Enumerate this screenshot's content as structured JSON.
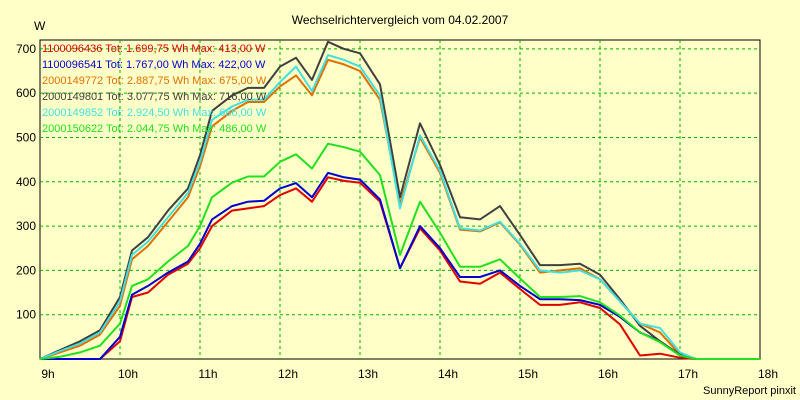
{
  "chart_data": {
    "type": "line",
    "title": "Wechselrichtervergleich vom 04.02.2007",
    "ylabel": "W",
    "xlabel": "",
    "footer": "SunnyReport pinxit",
    "ylim": [
      0,
      720
    ],
    "xlim": [
      9,
      18
    ],
    "grid": true,
    "legend_position": "top-left",
    "yticks": [
      {
        "value": 100,
        "label": "100"
      },
      {
        "value": 200,
        "label": "200"
      },
      {
        "value": 300,
        "label": "300"
      },
      {
        "value": 400,
        "label": "400"
      },
      {
        "value": 500,
        "label": "500"
      },
      {
        "value": 600,
        "label": "600"
      },
      {
        "value": 700,
        "label": "700"
      }
    ],
    "xticks": [
      {
        "value": 9,
        "label": "9h"
      },
      {
        "value": 10,
        "label": "10h"
      },
      {
        "value": 11,
        "label": "11h"
      },
      {
        "value": 12,
        "label": "12h"
      },
      {
        "value": 13,
        "label": "13h"
      },
      {
        "value": 14,
        "label": "14h"
      },
      {
        "value": 15,
        "label": "15h"
      },
      {
        "value": 16,
        "label": "16h"
      },
      {
        "value": 17,
        "label": "17h"
      },
      {
        "value": 18,
        "label": "18h"
      }
    ],
    "x": [
      8.9,
      9.25,
      9.5,
      9.75,
      10.0,
      10.15,
      10.35,
      10.6,
      10.85,
      11.0,
      11.15,
      11.4,
      11.6,
      11.8,
      12.0,
      12.2,
      12.4,
      12.6,
      12.8,
      13.0,
      13.25,
      13.5,
      13.75,
      14.0,
      14.25,
      14.5,
      14.75,
      15.0,
      15.25,
      15.5,
      15.75,
      16.0,
      16.25,
      16.5,
      16.75,
      17.0,
      17.2,
      17.45,
      17.7,
      17.95,
      18.2
    ],
    "series": [
      {
        "name": "1100096436",
        "legend": "1100096436 Tot: 1.699,75 Wh Max: 413,00 W",
        "color": "#e00000",
        "values": [
          0,
          0,
          0,
          0,
          40,
          140,
          150,
          190,
          215,
          250,
          300,
          335,
          340,
          345,
          370,
          385,
          355,
          410,
          402,
          398,
          355,
          205,
          295,
          245,
          175,
          170,
          195,
          158,
          122,
          122,
          128,
          115,
          78,
          8,
          12,
          3,
          0,
          0,
          0,
          0,
          0
        ]
      },
      {
        "name": "1100096541",
        "legend": "1100096541 Tot: 1.767,00 Wh Max: 422,00 W",
        "color": "#0000d0",
        "values": [
          0,
          0,
          0,
          0,
          50,
          145,
          165,
          195,
          220,
          260,
          315,
          345,
          355,
          357,
          385,
          397,
          365,
          420,
          410,
          405,
          360,
          205,
          300,
          250,
          185,
          185,
          200,
          165,
          135,
          135,
          133,
          122,
          95,
          60,
          40,
          8,
          0,
          0,
          0,
          0,
          0
        ]
      },
      {
        "name": "2000149772",
        "legend": "2000149772 Tot: 2.887,75 Wh Max: 675,00 W",
        "color": "#e07000",
        "values": [
          0,
          15,
          30,
          55,
          120,
          225,
          255,
          310,
          365,
          435,
          525,
          560,
          580,
          580,
          615,
          640,
          595,
          675,
          665,
          650,
          585,
          350,
          500,
          420,
          292,
          288,
          308,
          258,
          195,
          200,
          205,
          180,
          130,
          80,
          60,
          10,
          0,
          0,
          0,
          0,
          0
        ]
      },
      {
        "name": "2000149801",
        "legend": "2000149801 Tot: 3.077,75 Wh Max: 716,00 W",
        "color": "#404040",
        "values": [
          0,
          20,
          40,
          65,
          140,
          245,
          275,
          335,
          385,
          460,
          560,
          595,
          612,
          612,
          660,
          680,
          630,
          716,
          700,
          690,
          620,
          365,
          532,
          438,
          320,
          315,
          345,
          280,
          212,
          212,
          215,
          190,
          135,
          75,
          40,
          10,
          0,
          0,
          0,
          0,
          0
        ]
      },
      {
        "name": "2000149852",
        "legend": "2000149852 Tot: 2.924,50 Wh Max: 686,00 W",
        "color": "#40e0e0",
        "values": [
          0,
          18,
          35,
          60,
          130,
          235,
          265,
          320,
          375,
          445,
          540,
          570,
          585,
          585,
          625,
          660,
          605,
          686,
          675,
          660,
          595,
          340,
          505,
          425,
          295,
          290,
          310,
          260,
          200,
          195,
          200,
          180,
          130,
          80,
          70,
          15,
          0,
          0,
          0,
          0,
          0
        ]
      },
      {
        "name": "2000150622",
        "legend": "2000150622 Tot: 2.044,75 Wh Max: 486,00 W",
        "color": "#20e020",
        "values": [
          0,
          5,
          15,
          30,
          80,
          165,
          180,
          220,
          255,
          300,
          365,
          398,
          412,
          412,
          445,
          462,
          430,
          486,
          478,
          468,
          415,
          235,
          355,
          285,
          208,
          208,
          225,
          182,
          140,
          140,
          142,
          128,
          98,
          60,
          38,
          8,
          0,
          0,
          0,
          0,
          0
        ]
      }
    ]
  }
}
